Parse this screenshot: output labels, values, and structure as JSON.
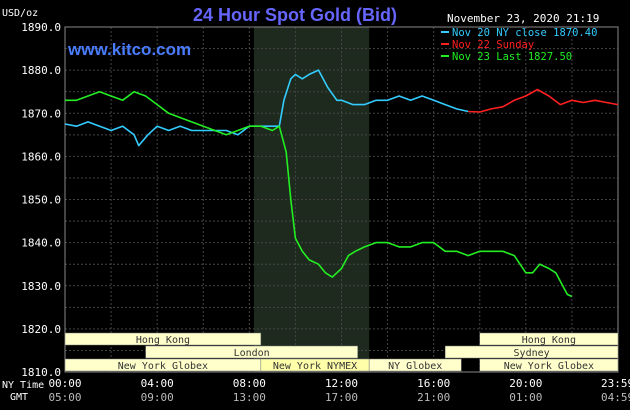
{
  "chart_data": {
    "type": "line",
    "title": "24 Hour Spot Gold (Bid)",
    "watermark": "www.kitco.com",
    "timestamp": "November 23, 2020 21:19",
    "ylabel": "USD/oz",
    "ylim": [
      1810,
      1890
    ],
    "y_ticks": [
      "1810.0",
      "1820.0",
      "1830.0",
      "1840.0",
      "1850.0",
      "1860.0",
      "1870.0",
      "1880.0",
      "1890.0"
    ],
    "xlim_hours": [
      0,
      24
    ],
    "x_ticks_ny": [
      "00:00",
      "04:00",
      "08:00",
      "12:00",
      "16:00",
      "20:00",
      "23:59"
    ],
    "x_ticks_gmt": [
      "05:00",
      "09:00",
      "13:00",
      "17:00",
      "21:00",
      "01:00",
      "04:59"
    ],
    "x_row_labels": {
      "ny": "NY Time",
      "gmt": "GMT"
    },
    "grid": true,
    "highlight_band_hours": [
      8.2,
      13.2
    ],
    "legend": [
      {
        "text": "Nov 20 NY close 1870.40",
        "color": "#33ccff"
      },
      {
        "text": "Nov 22 Sunday",
        "color": "#ff2020"
      },
      {
        "text": "Nov 23 Last 1827.50",
        "color": "#22ee22"
      }
    ],
    "series": [
      {
        "name": "Nov 20 NY close 1870.40",
        "color": "#33ccff",
        "x": [
          0,
          0.5,
          1,
          1.5,
          2,
          2.5,
          3,
          3.2,
          3.6,
          4,
          4.5,
          5,
          5.5,
          6,
          6.5,
          7,
          7.5,
          8,
          8.5,
          9,
          9.3,
          9.5,
          9.8,
          10,
          10.3,
          10.6,
          11,
          11.4,
          11.8,
          12,
          12.5,
          13,
          13.5,
          14,
          14.5,
          15,
          15.5,
          16,
          16.5,
          17,
          17.5
        ],
        "y": [
          1867.5,
          1867,
          1868,
          1867,
          1866,
          1867,
          1865,
          1862.5,
          1865,
          1867,
          1866,
          1867,
          1866,
          1866,
          1866,
          1866,
          1865,
          1867,
          1867,
          1867,
          1867,
          1873,
          1878,
          1879,
          1878,
          1879,
          1880,
          1876,
          1873,
          1873,
          1872,
          1872,
          1873,
          1873,
          1874,
          1873,
          1874,
          1873,
          1872,
          1871,
          1870.4
        ]
      },
      {
        "name": "Nov 22 Sunday",
        "color": "#ff2020",
        "x": [
          17.5,
          18,
          18.5,
          19,
          19.5,
          20,
          20.5,
          21,
          21.5,
          22,
          22.5,
          23,
          23.5,
          24
        ],
        "y": [
          1870.4,
          1870.3,
          1871,
          1871.5,
          1873,
          1874,
          1875.5,
          1874,
          1872,
          1873,
          1872.5,
          1873,
          1872.5,
          1872
        ]
      },
      {
        "name": "Nov 23 Last 1827.50",
        "color": "#22ee22",
        "x": [
          0,
          0.5,
          1,
          1.5,
          2,
          2.5,
          3,
          3.5,
          4,
          4.5,
          5,
          5.5,
          6,
          6.5,
          7,
          7.5,
          8,
          8.5,
          9,
          9.3,
          9.6,
          9.8,
          10,
          10.3,
          10.6,
          11,
          11.3,
          11.6,
          12,
          12.3,
          12.6,
          13,
          13.5,
          14,
          14.5,
          15,
          15.5,
          16,
          16.5,
          17,
          17.5,
          18,
          18.5,
          19,
          19.5,
          20,
          20.3,
          20.6,
          21,
          21.3,
          21.6,
          21.8,
          22
        ],
        "y": [
          1873,
          1873,
          1874,
          1875,
          1874,
          1873,
          1875,
          1874,
          1872,
          1870,
          1869,
          1868,
          1867,
          1866,
          1865,
          1866,
          1867,
          1867,
          1866,
          1867,
          1861,
          1850,
          1841,
          1838,
          1836,
          1835,
          1833,
          1832,
          1834,
          1837,
          1838,
          1839,
          1840,
          1840,
          1839,
          1839,
          1840,
          1840,
          1838,
          1838,
          1837,
          1838,
          1838,
          1838,
          1837,
          1833,
          1833,
          1835,
          1834,
          1833,
          1830,
          1828,
          1827.5
        ]
      }
    ],
    "sessions": [
      [
        {
          "label": "Hong Kong",
          "start": 0,
          "end": 8.5,
          "fill": "#ffffcc"
        },
        {
          "label": "Hong Kong",
          "start": 18,
          "end": 24,
          "fill": "#ffffcc"
        }
      ],
      [
        {
          "label": "London",
          "start": 3.5,
          "end": 12.7,
          "fill": "#ffffcc"
        },
        {
          "label": "Sydney",
          "start": 16.5,
          "end": 24,
          "fill": "#ffffcc"
        }
      ],
      [
        {
          "label": "New York Globex",
          "start": 0,
          "end": 8.5,
          "fill": "#ffffcc"
        },
        {
          "label": "New York NYMEX",
          "start": 8.5,
          "end": 13.2,
          "fill": "#ffffaa"
        },
        {
          "label": "NY Globex",
          "start": 13.2,
          "end": 17.2,
          "fill": "#ffffcc"
        },
        {
          "label": "New York Globex",
          "start": 18,
          "end": 24,
          "fill": "#ffffcc"
        }
      ]
    ]
  }
}
